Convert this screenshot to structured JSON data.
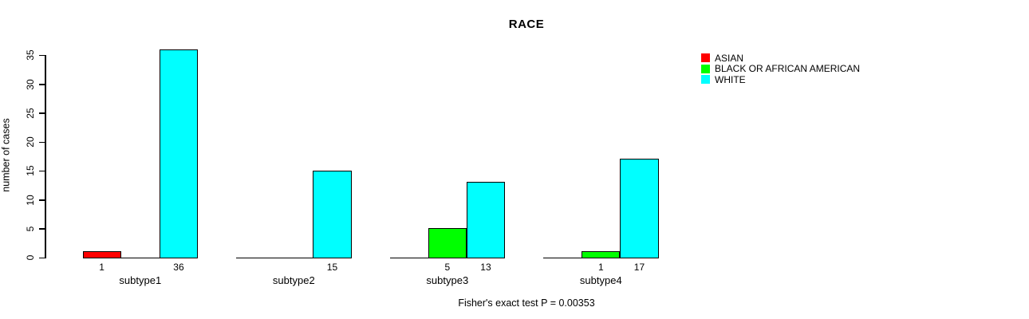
{
  "chart_data": {
    "type": "bar",
    "grouped": true,
    "title": "RACE",
    "xlabel": "",
    "ylabel": "number of cases",
    "caption": "Fisher's exact test P = 0.00353",
    "ylim": [
      0,
      36
    ],
    "yticks": [
      0,
      5,
      10,
      15,
      20,
      25,
      30,
      35
    ],
    "categories": [
      "subtype1",
      "subtype2",
      "subtype3",
      "subtype4"
    ],
    "series": [
      {
        "name": "ASIAN",
        "color": "#ff0000",
        "values": [
          1,
          0,
          0,
          0
        ]
      },
      {
        "name": "BLACK OR AFRICAN AMERICAN",
        "color": "#00ff00",
        "values": [
          0,
          0,
          5,
          1
        ]
      },
      {
        "name": "WHITE",
        "color": "#00ffff",
        "values": [
          36,
          15,
          13,
          17
        ]
      }
    ],
    "bar_value_labels": [
      {
        "group": "subtype1",
        "series": "ASIAN",
        "label": "1"
      },
      {
        "group": "subtype1",
        "series": "WHITE",
        "label": "36"
      },
      {
        "group": "subtype2",
        "series": "WHITE",
        "label": "15"
      },
      {
        "group": "subtype3",
        "series": "BLACK OR AFRICAN AMERICAN",
        "label": "5"
      },
      {
        "group": "subtype3",
        "series": "WHITE",
        "label": "13"
      },
      {
        "group": "subtype4",
        "series": "BLACK OR AFRICAN AMERICAN",
        "label": "1"
      },
      {
        "group": "subtype4",
        "series": "WHITE",
        "label": "17"
      }
    ],
    "legend_position": "right",
    "grid": false,
    "background_color": "#ffffff",
    "axis_color": "#000000"
  }
}
